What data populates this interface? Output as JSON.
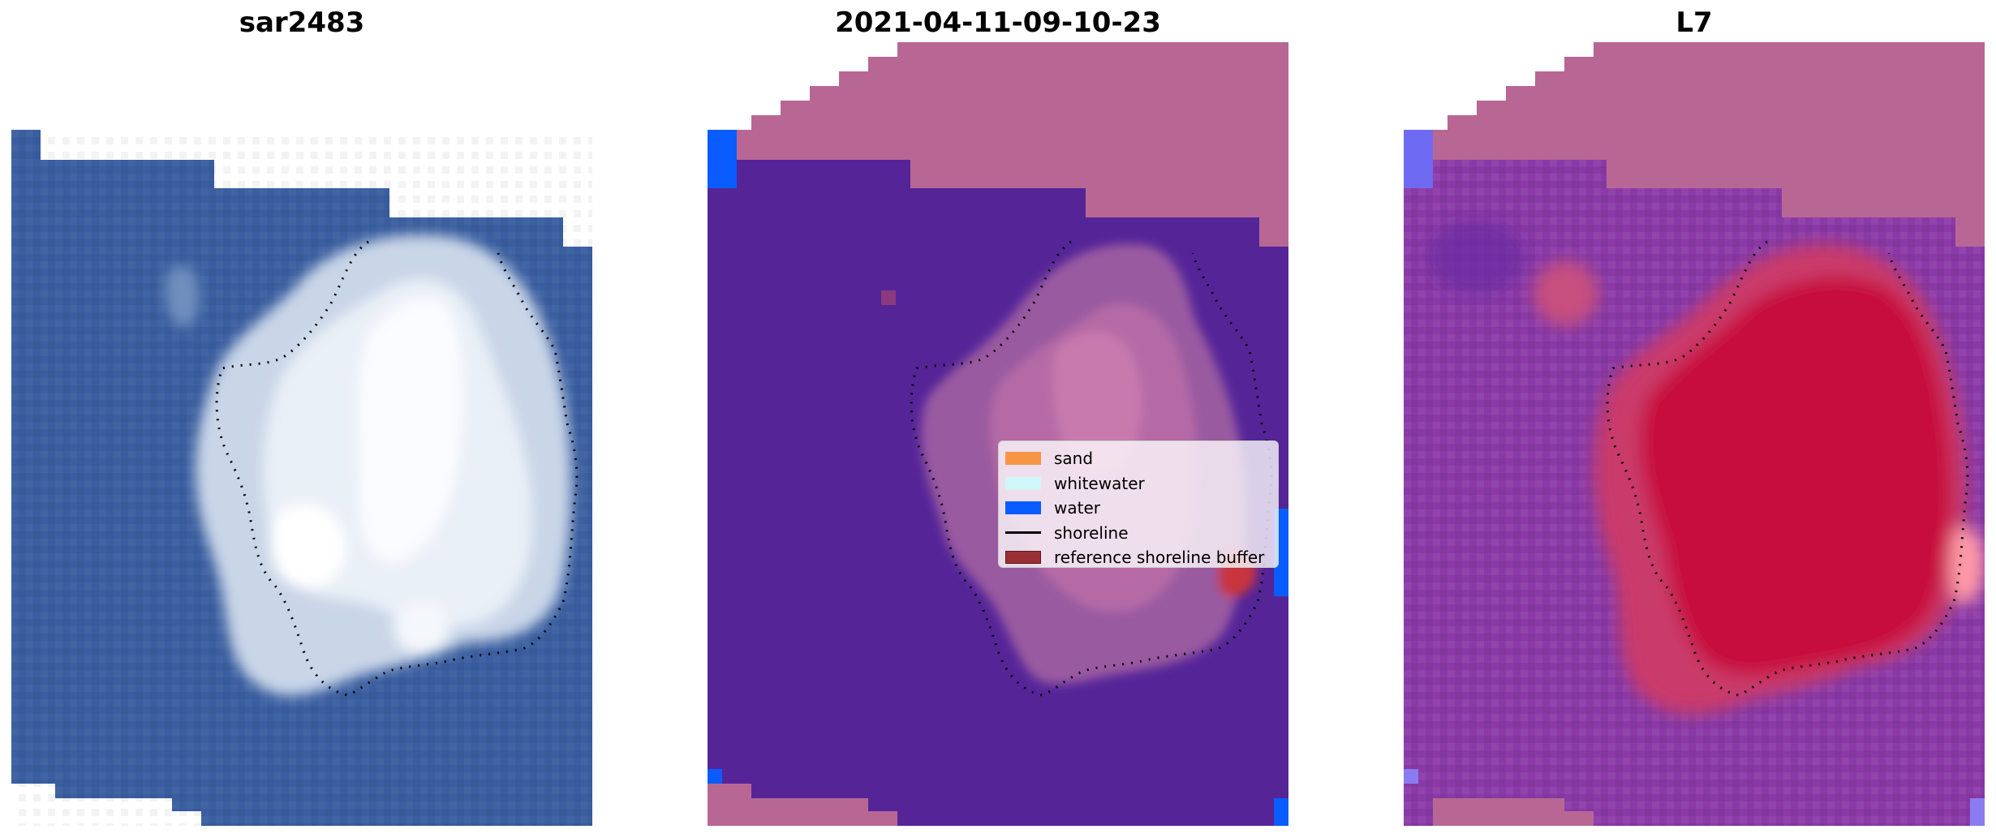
{
  "figure": {
    "panels": [
      {
        "id": "sar",
        "title": "sar2483"
      },
      {
        "id": "classified",
        "title": "2021-04-11-09-10-23"
      },
      {
        "id": "ndwi",
        "title": "L7"
      }
    ]
  },
  "legend": {
    "items": [
      {
        "label": "sand",
        "kind": "patch",
        "color": "#f79545"
      },
      {
        "label": "whitewater",
        "kind": "patch",
        "color": "#cff7f7"
      },
      {
        "label": "water",
        "kind": "patch",
        "color": "#0a5cff"
      },
      {
        "label": "shoreline",
        "kind": "line",
        "color": "#000000"
      },
      {
        "label": "reference shoreline buffer",
        "kind": "patch",
        "color": "#9a2f35"
      }
    ]
  },
  "colors": {
    "sea_rgb": "#3a5ea0",
    "island_rgb": "#e8eef6",
    "class_water": "#552598",
    "class_nodata": "#b86795",
    "class_island": "#a05a9e",
    "class_buffer": "#c8343e",
    "ndwi_sea": "#8a3aa8",
    "ndwi_land": "#c7113e",
    "water_blue": "#0a5cff"
  }
}
